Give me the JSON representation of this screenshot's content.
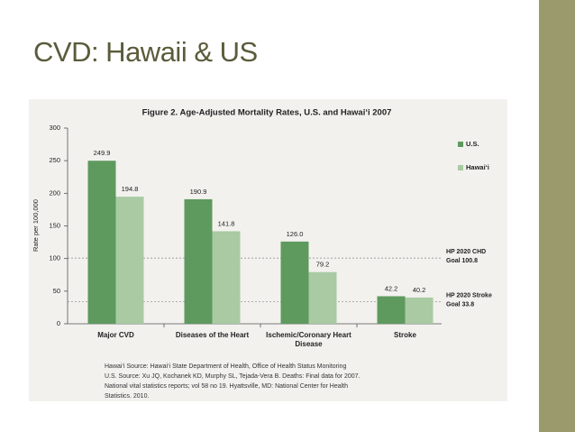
{
  "slide": {
    "title": "CVD: Hawaii & US"
  },
  "chart_data": {
    "type": "bar",
    "title": "Figure 2.  Age-Adjusted Mortality Rates, U.S. and Hawai‘i 2007",
    "y_label": "Rate per 100,000",
    "categories": [
      "Major CVD",
      "Diseases of the Heart",
      "Ischemic/Coronary Heart Disease",
      "Stroke"
    ],
    "series": [
      {
        "name": "U.S.",
        "color": "#5e9a5e",
        "values": [
          249.9,
          190.9,
          126.0,
          42.2
        ],
        "value_labels": [
          "249.9",
          "190.9",
          "126.0",
          "42.2"
        ]
      },
      {
        "name": "Hawai‘i",
        "color": "#a9caa3",
        "values": [
          194.8,
          141.8,
          79.2,
          40.2
        ]
      }
    ],
    "ylim": [
      0,
      300
    ],
    "yticks": [
      0,
      50,
      100,
      150,
      200,
      250,
      300
    ],
    "legend": "right",
    "reference_lines": [
      {
        "value": 100.8,
        "label": [
          "HP 2020 CHD",
          "Goal 100.8"
        ]
      },
      {
        "value": 33.8,
        "label": [
          "HP 2020 Stroke",
          "Goal 33.8"
        ]
      }
    ],
    "source": [
      "Hawai‘i Source:  Hawai‘i State Department of Health, Office of Health Status Monitoring",
      "U.S. Source:  Xu JQ, Kochanek KD, Murphy SL, Tejada-Vera B. Deaths:  Final data for 2007.",
      "National vital statistics reports; vol 58 no 19. Hyattsville, MD:  National Center for Health",
      "Statistics. 2010."
    ]
  }
}
